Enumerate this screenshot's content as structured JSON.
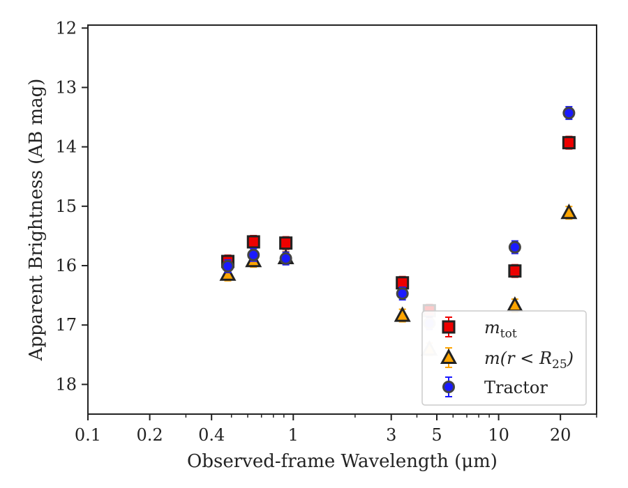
{
  "chart_data": {
    "type": "scatter",
    "xlabel": "Observed-frame Wavelength (μm)",
    "ylabel": "Apparent Brightness (AB mag)",
    "xscale": "log",
    "xlim": [
      0.1,
      30
    ],
    "ylim": [
      18.5,
      11.95
    ],
    "y_inverted": true,
    "x_ticks": [
      0.1,
      0.2,
      0.4,
      1,
      3,
      5,
      10,
      20
    ],
    "x_tick_labels": [
      "0.1",
      "0.2",
      "0.4",
      "1",
      "3",
      "5",
      "10",
      "20"
    ],
    "y_ticks": [
      12,
      13,
      14,
      15,
      16,
      17,
      18
    ],
    "y_tick_labels": [
      "12",
      "13",
      "14",
      "15",
      "16",
      "17",
      "18"
    ],
    "grid": false,
    "legend_position": "lower-right",
    "series": [
      {
        "name": "m_tot",
        "legend_main": "m",
        "legend_sub": "tot",
        "legend_tail": "",
        "marker": "square",
        "color": "#ee0000",
        "edge": "#222222",
        "points": [
          {
            "x": 0.48,
            "y": 15.93,
            "faded": false
          },
          {
            "x": 0.64,
            "y": 15.6,
            "faded": false
          },
          {
            "x": 0.92,
            "y": 15.62,
            "faded": false
          },
          {
            "x": 3.4,
            "y": 16.29,
            "faded": false
          },
          {
            "x": 4.6,
            "y": 16.76,
            "faded": true
          },
          {
            "x": 12,
            "y": 16.09,
            "faded": false
          },
          {
            "x": 22,
            "y": 13.93,
            "faded": false
          }
        ]
      },
      {
        "name": "m(r < R_25)",
        "legend_main": "m(r < R",
        "legend_sub": "25",
        "legend_tail": ")",
        "marker": "triangle",
        "color": "#ffa500",
        "edge": "#222222",
        "points": [
          {
            "x": 0.48,
            "y": 16.15,
            "faded": false
          },
          {
            "x": 0.64,
            "y": 15.92,
            "faded": false
          },
          {
            "x": 0.92,
            "y": 15.87,
            "faded": false
          },
          {
            "x": 3.4,
            "y": 16.84,
            "faded": false
          },
          {
            "x": 4.6,
            "y": 17.41,
            "faded": true
          },
          {
            "x": 12,
            "y": 16.67,
            "faded": false
          },
          {
            "x": 22,
            "y": 15.11,
            "faded": false
          }
        ]
      },
      {
        "name": "Tractor",
        "legend_main": "Tractor",
        "legend_sub": "",
        "legend_tail": "",
        "marker": "circle",
        "color": "#1a1aff",
        "edge": "#444444",
        "points": [
          {
            "x": 0.48,
            "y": 16.01,
            "faded": false
          },
          {
            "x": 0.64,
            "y": 15.82,
            "faded": false
          },
          {
            "x": 0.92,
            "y": 15.88,
            "faded": false
          },
          {
            "x": 3.4,
            "y": 16.47,
            "faded": false
          },
          {
            "x": 4.6,
            "y": 16.97,
            "faded": true
          },
          {
            "x": 12,
            "y": 15.69,
            "faded": false
          },
          {
            "x": 22,
            "y": 13.43,
            "faded": false
          }
        ]
      }
    ]
  }
}
